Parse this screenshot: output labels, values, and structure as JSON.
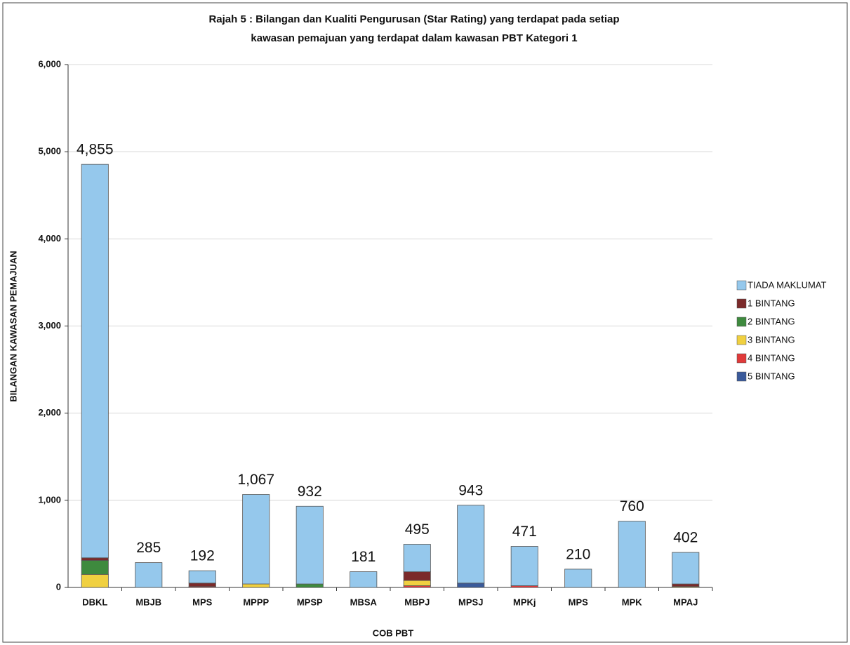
{
  "chart_data": {
    "type": "stacked_bar",
    "title": "Rajah 5 : Bilangan dan Kualiti Pengurusan (Star Rating) yang terdapat pada setiap",
    "subtitle": "kawasan pemajuan yang terdapat dalam kawasan PBT Kategori 1",
    "x_label": "COB PBT",
    "y_label": "BILANGAN KAWASAN PEMAJUAN",
    "categories": [
      "DBKL",
      "MBJB",
      "MPS",
      "MPPP",
      "MPSP",
      "MBSA",
      "MBPJ",
      "MPSJ",
      "MPKj",
      "MPS",
      "MPK",
      "MPAJ"
    ],
    "series": [
      {
        "name": "TIADA MAKLUMAT",
        "color": "#95c8ec",
        "values": [
          4515,
          285,
          142,
          1027,
          892,
          181,
          315,
          893,
          451,
          210,
          760,
          362
        ]
      },
      {
        "name": "1 BINTANG",
        "color": "#7b2a2a",
        "values": [
          30,
          0,
          40,
          0,
          0,
          0,
          100,
          0,
          0,
          0,
          0,
          30
        ]
      },
      {
        "name": "2 BINTANG",
        "color": "#3e8a3e",
        "values": [
          160,
          0,
          0,
          0,
          40,
          0,
          0,
          0,
          0,
          0,
          0,
          0
        ]
      },
      {
        "name": "3 BINTANG",
        "color": "#f0d040",
        "values": [
          150,
          0,
          0,
          40,
          0,
          0,
          60,
          0,
          0,
          0,
          0,
          10
        ]
      },
      {
        "name": "4 BINTANG",
        "color": "#e03a3a",
        "values": [
          0,
          0,
          10,
          0,
          0,
          0,
          20,
          0,
          20,
          0,
          0,
          0
        ]
      },
      {
        "name": "5 BINTANG",
        "color": "#3a5a9a",
        "values": [
          0,
          0,
          0,
          0,
          0,
          0,
          0,
          50,
          0,
          0,
          0,
          0
        ]
      }
    ],
    "totals": [
      4855,
      285,
      192,
      1067,
      932,
      181,
      495,
      943,
      471,
      210,
      760,
      402
    ],
    "total_labels": [
      "4,855",
      "285",
      "192",
      "1,067",
      "932",
      "181",
      "495",
      "943",
      "471",
      "210",
      "760",
      "402"
    ],
    "ylim": [
      0,
      6000
    ],
    "yticks": [
      0,
      {
        "value": 1000,
        "label": "1,000"
      },
      {
        "value": 2000,
        "label": "2,000"
      },
      {
        "value": 3000,
        "label": "3,000"
      },
      {
        "value": 4000,
        "label": "4,000"
      },
      {
        "value": 5000,
        "label": "5,000"
      },
      {
        "value": 6000,
        "label": "6,000"
      }
    ],
    "grid": true,
    "legend": "right"
  }
}
